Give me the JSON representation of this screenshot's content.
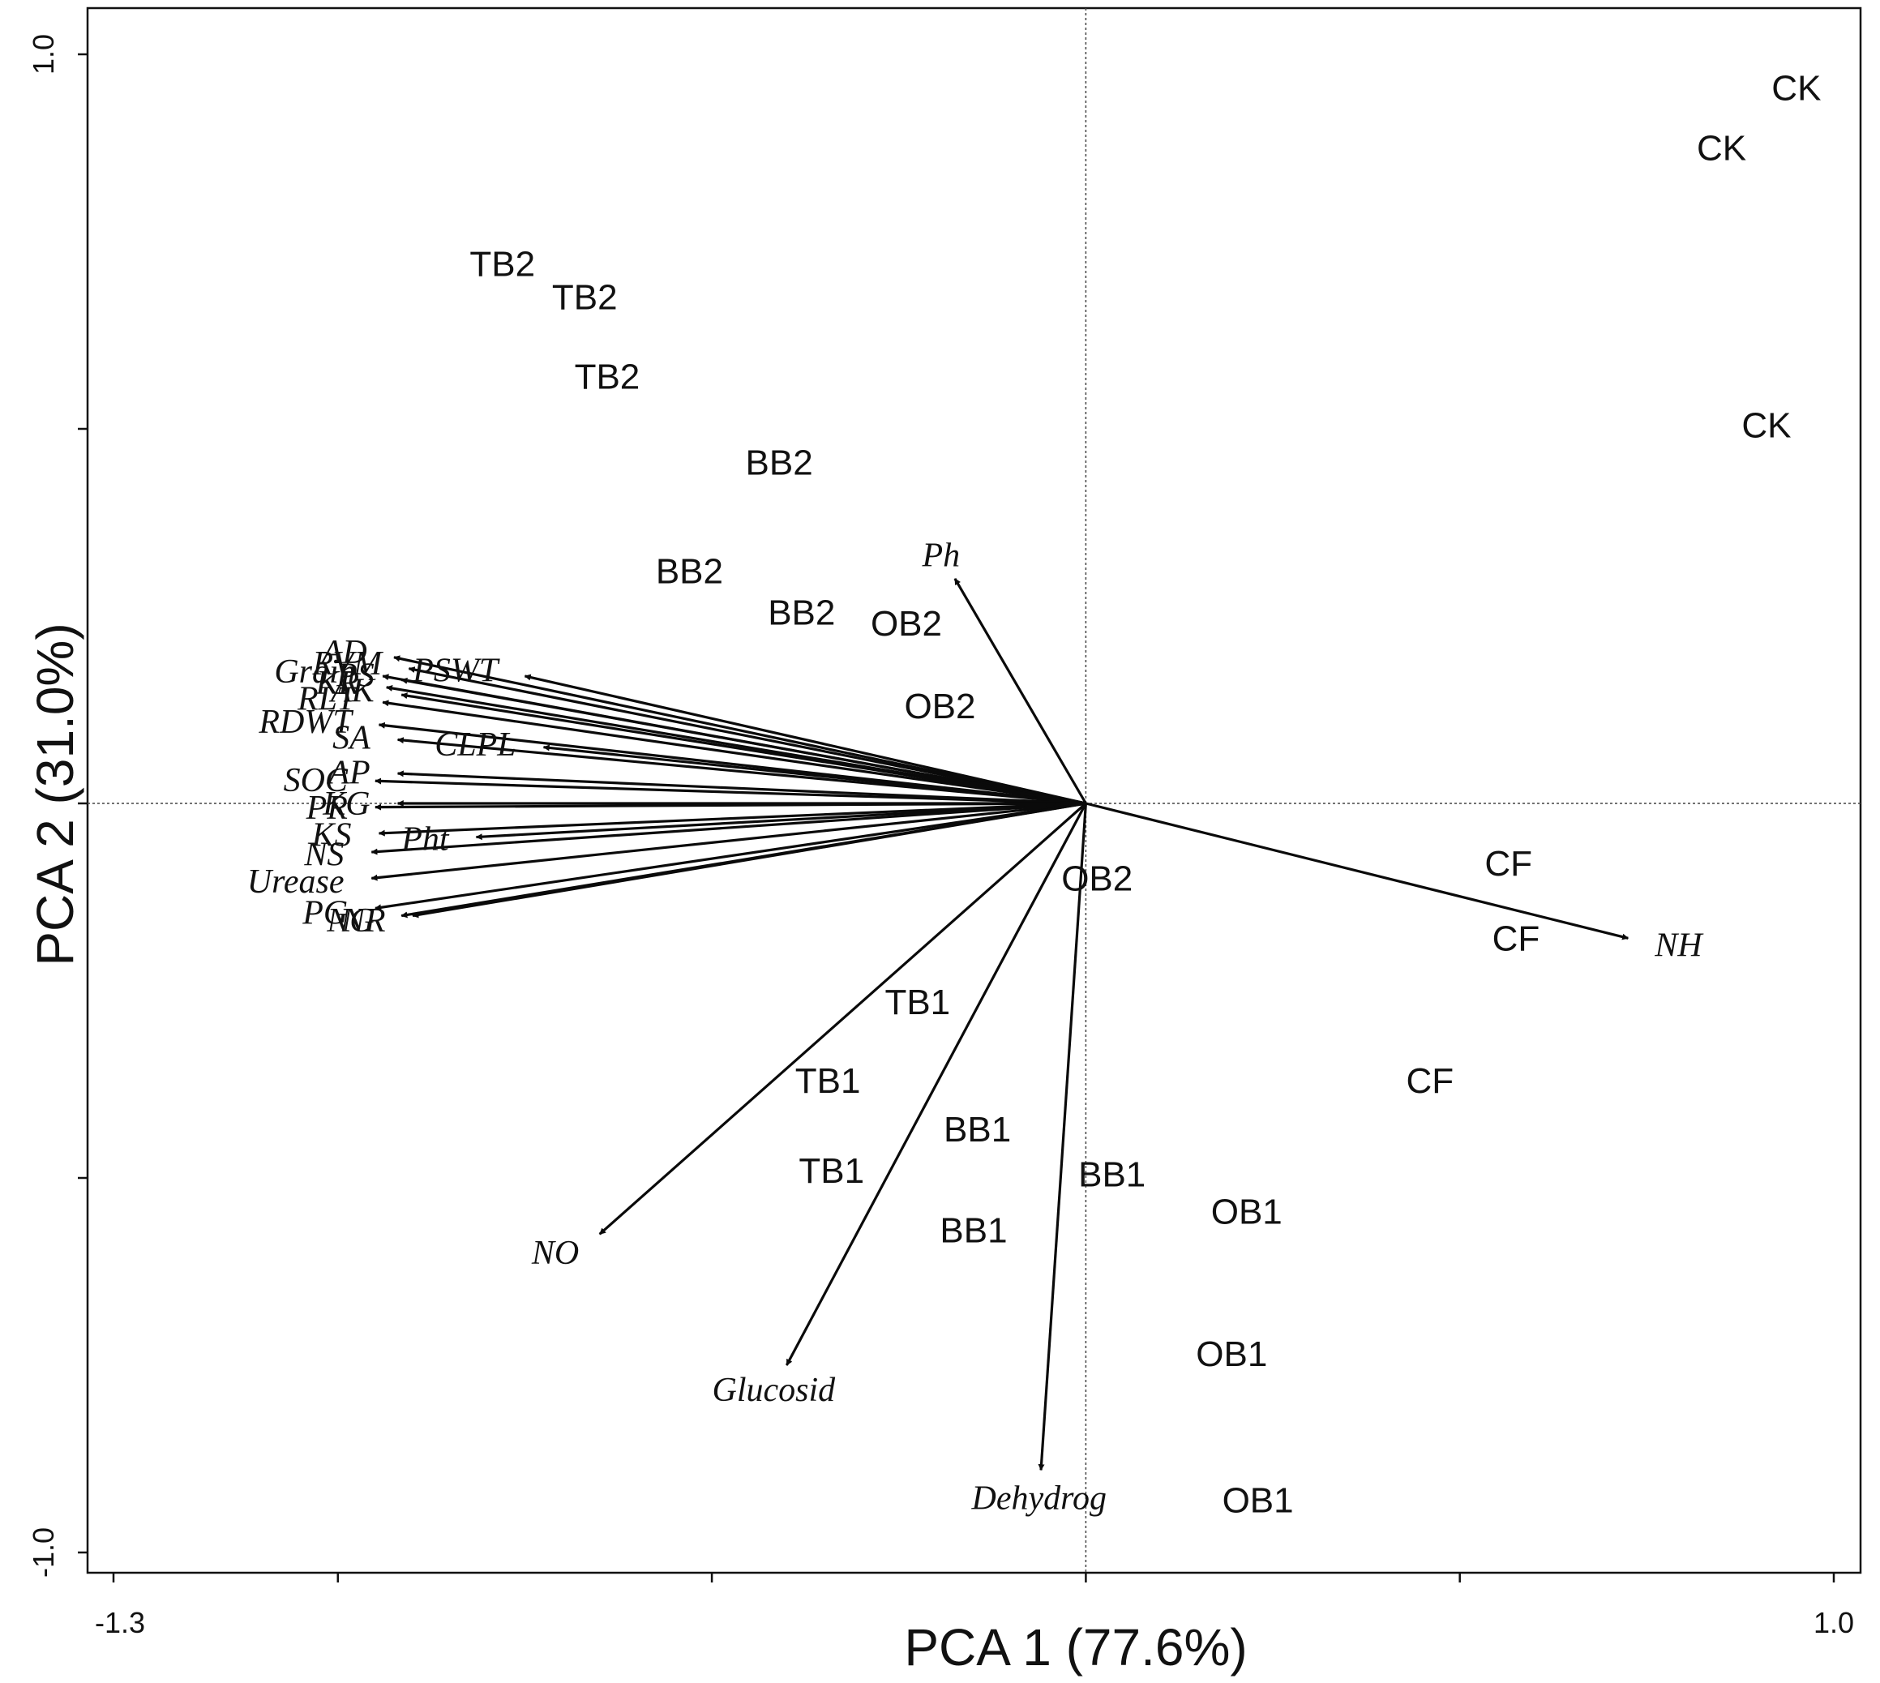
{
  "chart_data": {
    "type": "scatter",
    "subtype": "pca-biplot",
    "xlabel": "PCA 1 (77.6%)",
    "ylabel": "PCA 2 (31.0%)",
    "xlim": [
      -1.3,
      1.0
    ],
    "ylim": [
      -1.0,
      1.0
    ],
    "x_tick_labels": [
      "-1.3",
      "1.0"
    ],
    "y_tick_labels": [
      "1.0",
      "-1.0"
    ],
    "x_ticks": [
      -1.3,
      -1.0,
      -0.5,
      0.0,
      0.5,
      1.0
    ],
    "y_ticks": [
      1.0,
      0.5,
      0.0,
      -0.5,
      -1.0
    ],
    "zero_lines": true,
    "sites": [
      {
        "label": "CK",
        "x": 0.95,
        "y": 0.955
      },
      {
        "label": "CK",
        "x": 0.85,
        "y": 0.875
      },
      {
        "label": "CK",
        "x": 0.91,
        "y": 0.505
      },
      {
        "label": "TB2",
        "x": -0.78,
        "y": 0.72
      },
      {
        "label": "TB2",
        "x": -0.67,
        "y": 0.676
      },
      {
        "label": "TB2",
        "x": -0.64,
        "y": 0.57
      },
      {
        "label": "BB2",
        "x": -0.41,
        "y": 0.455
      },
      {
        "label": "BB2",
        "x": -0.53,
        "y": 0.31
      },
      {
        "label": "BB2",
        "x": -0.38,
        "y": 0.255
      },
      {
        "label": "OB2",
        "x": -0.24,
        "y": 0.24
      },
      {
        "label": "OB2",
        "x": -0.195,
        "y": 0.13
      },
      {
        "label": "OB2",
        "x": 0.015,
        "y": -0.1
      },
      {
        "label": "CF",
        "x": 0.565,
        "y": -0.08
      },
      {
        "label": "CF",
        "x": 0.575,
        "y": -0.18
      },
      {
        "label": "CF",
        "x": 0.46,
        "y": -0.37
      },
      {
        "label": "TB1",
        "x": -0.225,
        "y": -0.265
      },
      {
        "label": "TB1",
        "x": -0.345,
        "y": -0.37
      },
      {
        "label": "TB1",
        "x": -0.34,
        "y": -0.49
      },
      {
        "label": "BB1",
        "x": -0.145,
        "y": -0.435
      },
      {
        "label": "BB1",
        "x": 0.035,
        "y": -0.495
      },
      {
        "label": "BB1",
        "x": -0.15,
        "y": -0.57
      },
      {
        "label": "OB1",
        "x": 0.215,
        "y": -0.545
      },
      {
        "label": "OB1",
        "x": 0.195,
        "y": -0.735
      },
      {
        "label": "OB1",
        "x": 0.23,
        "y": -0.93
      }
    ],
    "variables": [
      {
        "label": "Ph",
        "x": -0.175,
        "y": 0.3
      },
      {
        "label": "NH",
        "x": 0.725,
        "y": -0.18
      },
      {
        "label": "NO",
        "x": -0.65,
        "y": -0.575
      },
      {
        "label": "Glucosid",
        "x": -0.4,
        "y": -0.75
      },
      {
        "label": "Dehydrog",
        "x": -0.06,
        "y": -0.89
      },
      {
        "label": "AD",
        "x": -0.925,
        "y": 0.195
      },
      {
        "label": "RVM",
        "x": -0.905,
        "y": 0.18
      },
      {
        "label": "PSWT",
        "x": -0.75,
        "y": 0.17
      },
      {
        "label": "Grain",
        "x": -0.94,
        "y": 0.17
      },
      {
        "label": "PS",
        "x": -0.915,
        "y": 0.165
      },
      {
        "label": "KR",
        "x": -0.935,
        "y": 0.155
      },
      {
        "label": "AK",
        "x": -0.915,
        "y": 0.145
      },
      {
        "label": "RLT",
        "x": -0.94,
        "y": 0.135
      },
      {
        "label": "RDWT",
        "x": -0.945,
        "y": 0.105
      },
      {
        "label": "CLPL",
        "x": -0.725,
        "y": 0.075
      },
      {
        "label": "SA",
        "x": -0.92,
        "y": 0.085
      },
      {
        "label": "AP",
        "x": -0.92,
        "y": 0.04
      },
      {
        "label": "SOC",
        "x": -0.95,
        "y": 0.03
      },
      {
        "label": "KG",
        "x": -0.92,
        "y": 0.0
      },
      {
        "label": "PR",
        "x": -0.95,
        "y": -0.005
      },
      {
        "label": "Pht",
        "x": -0.815,
        "y": -0.045
      },
      {
        "label": "KS",
        "x": -0.945,
        "y": -0.04
      },
      {
        "label": "NS",
        "x": -0.955,
        "y": -0.065
      },
      {
        "label": "Urease",
        "x": -0.955,
        "y": -0.1
      },
      {
        "label": "PG",
        "x": -0.95,
        "y": -0.14
      },
      {
        "label": "NG",
        "x": -0.915,
        "y": -0.15
      },
      {
        "label": "NR",
        "x": -0.9,
        "y": -0.15
      }
    ]
  }
}
